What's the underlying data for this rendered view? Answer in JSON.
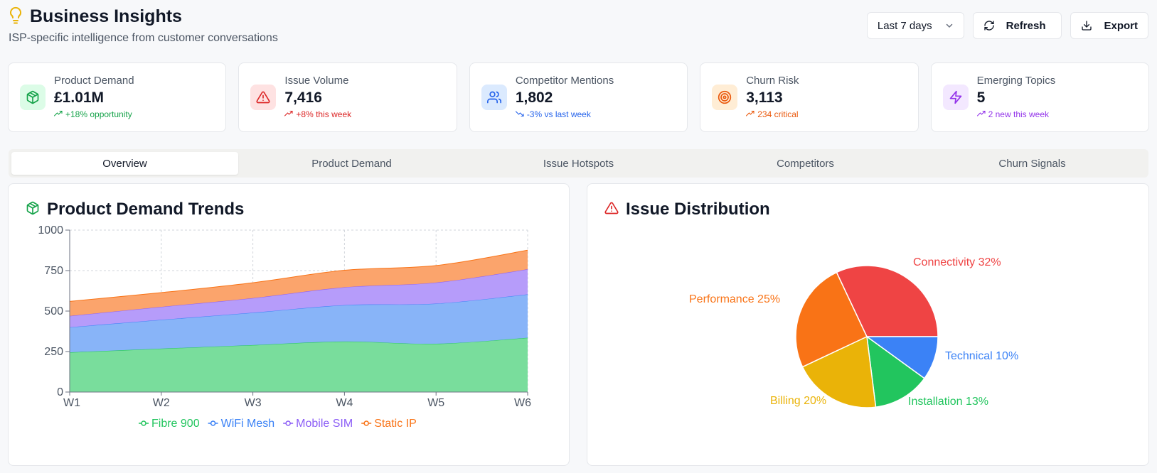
{
  "header": {
    "title": "Business Insights",
    "subtitle": "ISP-specific intelligence from customer conversations",
    "range_label": "Last 7 days",
    "refresh_label": "Refresh",
    "export_label": "Export"
  },
  "cards": [
    {
      "label": "Product Demand",
      "value": "£1.01M",
      "trend": "+18% opportunity",
      "color": "#16a34a",
      "bg": "#dcfce7",
      "icon": "package-icon",
      "trend_dir": "up"
    },
    {
      "label": "Issue Volume",
      "value": "7,416",
      "trend": "+8% this week",
      "color": "#dc2626",
      "bg": "#fee2e2",
      "icon": "alert-triangle-icon",
      "trend_dir": "up"
    },
    {
      "label": "Competitor Mentions",
      "value": "1,802",
      "trend": "-3% vs last week",
      "color": "#2563eb",
      "bg": "#dbeafe",
      "icon": "users-icon",
      "trend_dir": "down"
    },
    {
      "label": "Churn Risk",
      "value": "3,113",
      "trend": "234 critical",
      "color": "#ea580c",
      "bg": "#ffedd5",
      "icon": "target-icon",
      "trend_dir": "up"
    },
    {
      "label": "Emerging Topics",
      "value": "5",
      "trend": "2 new this week",
      "color": "#9333ea",
      "bg": "#f3e8ff",
      "icon": "zap-icon",
      "trend_dir": "up"
    }
  ],
  "tabs": [
    "Overview",
    "Product Demand",
    "Issue Hotspots",
    "Competitors",
    "Churn Signals"
  ],
  "active_tab": 0,
  "demand_panel": {
    "title": "Product Demand Trends"
  },
  "issue_panel": {
    "title": "Issue Distribution"
  },
  "chart_data": [
    {
      "type": "area",
      "stacked": true,
      "title": "Product Demand Trends",
      "categories": [
        "W1",
        "W2",
        "W3",
        "W4",
        "W5",
        "W6"
      ],
      "ylim": [
        0,
        1000
      ],
      "yticks": [
        0,
        250,
        500,
        750,
        1000
      ],
      "grid": true,
      "legend": "bottom",
      "series": [
        {
          "name": "Fibre 900",
          "color": "#22c55e",
          "fill": "#79dd9c",
          "values": [
            245,
            268,
            290,
            312,
            298,
            335
          ]
        },
        {
          "name": "WiFi Mesh",
          "color": "#3b82f6",
          "fill": "#88b4f8",
          "values": [
            155,
            178,
            200,
            225,
            248,
            268
          ]
        },
        {
          "name": "Mobile SIM",
          "color": "#8b5cf6",
          "fill": "#b69cfa",
          "values": [
            70,
            80,
            90,
            110,
            130,
            155
          ]
        },
        {
          "name": "Static IP",
          "color": "#f97316",
          "fill": "#fba46c",
          "values": [
            90,
            88,
            95,
            105,
            105,
            118
          ]
        }
      ]
    },
    {
      "type": "pie",
      "title": "Issue Distribution",
      "slices": [
        {
          "name": "Connectivity",
          "value": 32,
          "label": "Connectivity 32%",
          "color": "#ef4444"
        },
        {
          "name": "Technical",
          "value": 10,
          "label": "Technical 10%",
          "color": "#3b82f6"
        },
        {
          "name": "Installation",
          "value": 13,
          "label": "Installation 13%",
          "color": "#22c55e"
        },
        {
          "name": "Billing",
          "value": 20,
          "label": "Billing 20%",
          "color": "#eab308"
        },
        {
          "name": "Performance",
          "value": 25,
          "label": "Performance 25%",
          "color": "#f97316"
        }
      ]
    }
  ]
}
